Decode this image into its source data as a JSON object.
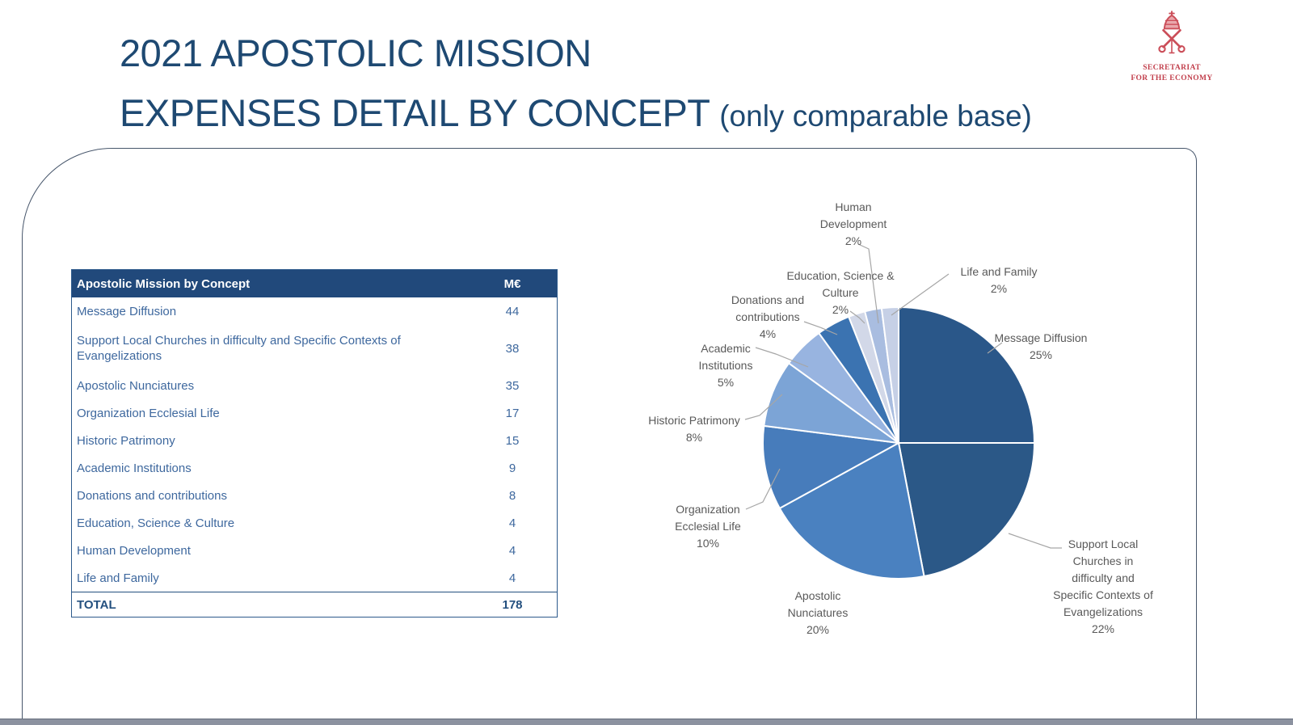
{
  "slide": {
    "title_line1": "2021 APOSTOLIC MISSION",
    "title_line2": "EXPENSES DETAIL BY CONCEPT ",
    "title_suffix": "(only comparable base)",
    "logo": {
      "emblem_icon": "papal-tiara-crossed-keys",
      "org_name": "SECRETARIAT\nFOR THE ECONOMY",
      "color": "#C2404D"
    },
    "accent_color": "#1E4972"
  },
  "table": {
    "header": {
      "concept": "Apostolic Mission by Concept",
      "value": "M€"
    },
    "header_bg": "#21497B",
    "rows": [
      {
        "concept": "Message Diffusion",
        "value": "44"
      },
      {
        "concept": "Support Local Churches in difficulty and Specific Contexts of Evangelizations",
        "value": "38"
      },
      {
        "concept": "Apostolic  Nunciatures",
        "value": "35"
      },
      {
        "concept": "Organization Ecclesial Life",
        "value": "17"
      },
      {
        "concept": "Historic Patrimony",
        "value": "15"
      },
      {
        "concept": "Academic Institutions",
        "value": "9"
      },
      {
        "concept": "Donations and contributions",
        "value": "8"
      },
      {
        "concept": "Education, Science & Culture",
        "value": "4"
      },
      {
        "concept": "Human Development",
        "value": "4"
      },
      {
        "concept": "Life and Family",
        "value": "4"
      }
    ],
    "total": {
      "concept": "TOTAL",
      "value": "178"
    }
  },
  "chart_data": {
    "type": "pie",
    "title": "",
    "unit": "M€",
    "legend": "none",
    "data_labels": "outside-with-leader-lines",
    "start_angle_deg_from_12_clockwise": 0,
    "categories": [
      "Message Diffusion",
      "Support Local Churches in difficulty and Specific Contexts of Evangelizations",
      "Apostolic Nunciatures",
      "Organization Ecclesial Life",
      "Historic Patrimony",
      "Academic Institutions",
      "Donations and contributions",
      "Education, Science & Culture",
      "Human Development",
      "Life and Family"
    ],
    "values_meur": [
      44,
      38,
      35,
      17,
      15,
      9,
      8,
      4,
      4,
      4
    ],
    "total_meur": 178,
    "percents": [
      25,
      22,
      20,
      10,
      8,
      5,
      4,
      2,
      2,
      2
    ],
    "colors": [
      "#2A5789",
      "#2B5887",
      "#4A81C0",
      "#477CBB",
      "#7CA4D6",
      "#98B4E0",
      "#3B73B1",
      "#D2D8E8",
      "#A9BDE0",
      "#C6D0E6"
    ],
    "labels": [
      "Message Diffusion\n25%",
      "Support Local\nChurches in\ndifficulty and\nSpecific Contexts of\nEvangelizations\n22%",
      "Apostolic\nNunciatures\n20%",
      "Organization\nEcclesial Life\n10%",
      "Historic Patrimony\n8%",
      "Academic\nInstitutions\n5%",
      "Donations and\ncontributions\n4%",
      "Education, Science &\nCulture\n2%",
      "Human\nDevelopment\n2%",
      "Life and Family\n2%"
    ],
    "leader_line_color": "#A6A6A6",
    "slice_border_color": "#FFFFFF"
  }
}
